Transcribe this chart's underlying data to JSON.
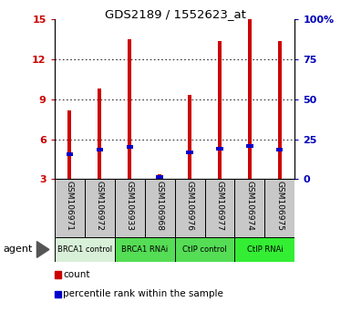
{
  "title": "GDS2189 / 1552623_at",
  "samples": [
    "GSM106971",
    "GSM106972",
    "GSM106933",
    "GSM106968",
    "GSM106976",
    "GSM106977",
    "GSM106974",
    "GSM106975"
  ],
  "counts": [
    8.2,
    9.8,
    13.5,
    3.4,
    9.3,
    13.4,
    15.0,
    13.4
  ],
  "percentile_ranks": [
    4.9,
    5.2,
    5.4,
    3.2,
    5.0,
    5.3,
    5.5,
    5.2
  ],
  "groups": [
    {
      "label": "BRCA1 control",
      "start": 0,
      "end": 2,
      "color": "#d8f0d8"
    },
    {
      "label": "BRCA1 RNAi",
      "start": 2,
      "end": 4,
      "color": "#55dd55"
    },
    {
      "label": "CtIP control",
      "start": 4,
      "end": 6,
      "color": "#55dd55"
    },
    {
      "label": "CtIP RNAi",
      "start": 6,
      "end": 8,
      "color": "#33ee33"
    }
  ],
  "ylim_min": 3,
  "ylim_max": 15,
  "yticks": [
    3,
    6,
    9,
    12,
    15
  ],
  "ytick_labels": [
    "3",
    "6",
    "9",
    "12",
    "15"
  ],
  "right_ytick_labels": [
    "0",
    "25",
    "50",
    "75",
    "100%"
  ],
  "bar_color": "#cc0000",
  "pct_color": "#0000cc",
  "left_tick_color": "#cc0000",
  "right_tick_color": "#0000bb",
  "background_label": "#c8c8c8",
  "group_colors": [
    "#d8f0d8",
    "#55dd55",
    "#55dd55",
    "#33ee33"
  ],
  "bar_width": 0.12
}
